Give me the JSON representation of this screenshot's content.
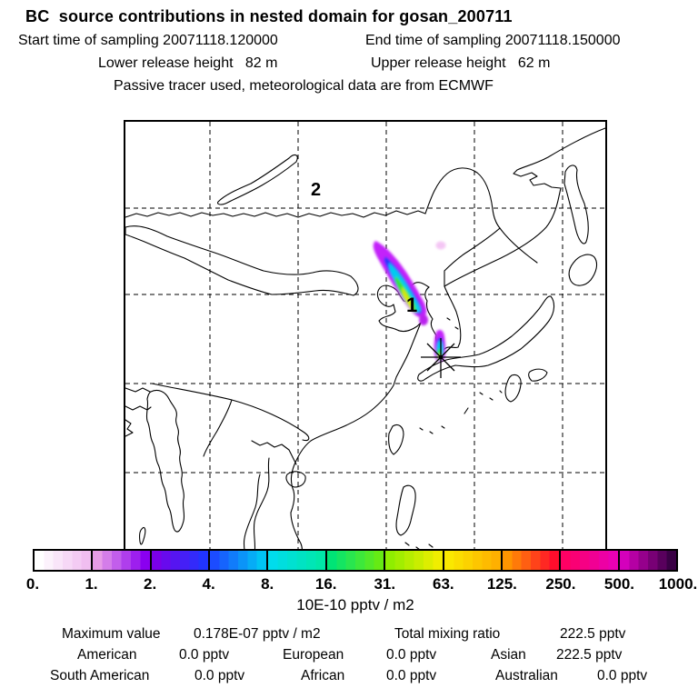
{
  "header": {
    "title": "BC  source contributions in nested domain for gosan_200711",
    "start_time": "Start time of sampling 20071118.120000",
    "end_time": "End time of sampling 20071118.150000",
    "lower_release": "Lower release height   82 m",
    "upper_release": "Upper release height   62 m",
    "tracer_note": "Passive tracer used, meteorological data are from ECMWF"
  },
  "map": {
    "domain_label": "2",
    "release_label": "1"
  },
  "colorbar": {
    "unit": "10E-10 pptv / m2",
    "ticks": [
      "0.",
      "1.",
      "2.",
      "4.",
      "8.",
      "16.",
      "31.",
      "63.",
      "125.",
      "250.",
      "500.",
      "1000."
    ],
    "segments": [
      {
        "from": "#ffffff",
        "to": "#f0bef0"
      },
      {
        "from": "#e79ce7",
        "to": "#8a00f0"
      },
      {
        "from": "#7a00e8",
        "to": "#2134ff"
      },
      {
        "from": "#1c4cff",
        "to": "#00c4f4"
      },
      {
        "from": "#00dcec",
        "to": "#00e8a8"
      },
      {
        "from": "#00e476",
        "to": "#66ea14"
      },
      {
        "from": "#8fee00",
        "to": "#f0ee00"
      },
      {
        "from": "#fae800",
        "to": "#ffb000"
      },
      {
        "from": "#ff9500",
        "to": "#ff0d2c"
      },
      {
        "from": "#ff0064",
        "to": "#e800b4"
      },
      {
        "from": "#d400bc",
        "to": "#3a0045"
      }
    ]
  },
  "stats": {
    "max_label": "Maximum value",
    "max_value": "0.178E-07 pptv / m2",
    "total_label": "Total mixing ratio",
    "total_value": "222.5 pptv",
    "continents": [
      {
        "name": "American",
        "value": "0.0 pptv"
      },
      {
        "name": "European",
        "value": "0.0 pptv"
      },
      {
        "name": "Asian",
        "value": "222.5 pptv"
      },
      {
        "name": "South American",
        "value": "0.0 pptv"
      },
      {
        "name": "African",
        "value": "0.0 pptv"
      },
      {
        "name": "Australian",
        "value": "0.0 pptv"
      }
    ]
  },
  "chart_data": {
    "type": "heatmap",
    "title": "BC source contributions in nested domain for gosan_200711",
    "colorbar_levels": [
      0,
      1,
      2,
      4,
      8,
      16,
      31,
      63,
      125,
      250,
      500,
      1000
    ],
    "colorbar_unit": "10E-10 pptv / m2",
    "maximum_value": "0.178E-07 pptv / m2",
    "total_mixing_ratio": "222.5 pptv",
    "contributions": [
      {
        "region": "American",
        "value_pptv": 0.0
      },
      {
        "region": "European",
        "value_pptv": 0.0
      },
      {
        "region": "Asian",
        "value_pptv": 222.5
      },
      {
        "region": "South American",
        "value_pptv": 0.0
      },
      {
        "region": "African",
        "value_pptv": 0.0
      },
      {
        "region": "Australian",
        "value_pptv": 0.0
      }
    ],
    "annotations": [
      "label 2 = nested domain number (north-central map)",
      "label 1 = release/source point at plume base near Bohai",
      "star marker = gosan receptor site south of Korea",
      "main tilted plume NE-China toward Korea, core ~63-125 units",
      "small plume at receptor, core ~31-63 units",
      "faint 0-1 unit spot northeast of main plume"
    ]
  }
}
